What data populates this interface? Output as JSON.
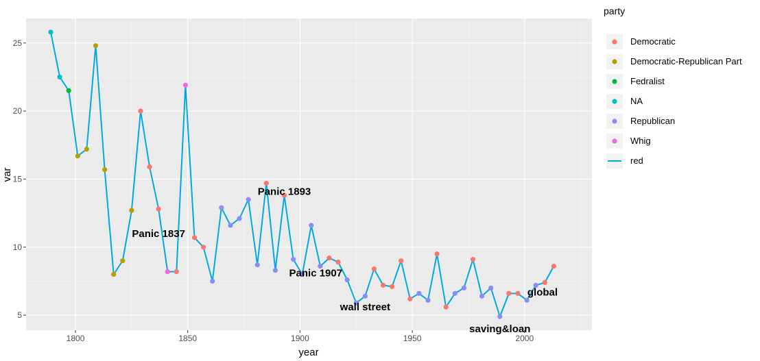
{
  "chart_data": {
    "type": "line",
    "xlabel": "year",
    "ylabel": "var",
    "xlim": [
      1778,
      2030
    ],
    "ylim": [
      3.9,
      26.8
    ],
    "x_ticks": [
      1800,
      1850,
      1900,
      1950,
      2000
    ],
    "y_ticks": [
      5,
      10,
      15,
      20,
      25
    ],
    "grid": true,
    "legend_position": "right",
    "legend_title": "party",
    "line_series": {
      "name": "red",
      "color": "#00A9E0"
    },
    "parties": [
      {
        "name": "Democratic",
        "color": "#F8766D"
      },
      {
        "name": "Democratic-Republican Part",
        "color": "#B79F00"
      },
      {
        "name": "Fedralist",
        "color": "#00BA38"
      },
      {
        "name": "NA",
        "color": "#00BFC4"
      },
      {
        "name": "Republican",
        "color": "#8C8CF5"
      },
      {
        "name": "Whig",
        "color": "#F564E3"
      }
    ],
    "points": [
      {
        "x": 1789,
        "y": 25.8,
        "party": "NA"
      },
      {
        "x": 1793,
        "y": 22.5,
        "party": "NA"
      },
      {
        "x": 1797,
        "y": 21.5,
        "party": "Fedralist"
      },
      {
        "x": 1801,
        "y": 16.7,
        "party": "Democratic-Republican Part"
      },
      {
        "x": 1805,
        "y": 17.2,
        "party": "Democratic-Republican Part"
      },
      {
        "x": 1809,
        "y": 24.8,
        "party": "Democratic-Republican Part"
      },
      {
        "x": 1813,
        "y": 15.7,
        "party": "Democratic-Republican Part"
      },
      {
        "x": 1817,
        "y": 8.0,
        "party": "Democratic-Republican Part"
      },
      {
        "x": 1821,
        "y": 9.0,
        "party": "Democratic-Republican Part"
      },
      {
        "x": 1825,
        "y": 12.7,
        "party": "Democratic-Republican Part"
      },
      {
        "x": 1829,
        "y": 20.0,
        "party": "Democratic"
      },
      {
        "x": 1833,
        "y": 15.9,
        "party": "Democratic"
      },
      {
        "x": 1837,
        "y": 12.8,
        "party": "Democratic"
      },
      {
        "x": 1841,
        "y": 8.2,
        "party": "Whig"
      },
      {
        "x": 1845,
        "y": 8.2,
        "party": "Democratic"
      },
      {
        "x": 1849,
        "y": 21.9,
        "party": "Whig"
      },
      {
        "x": 1853,
        "y": 10.7,
        "party": "Democratic"
      },
      {
        "x": 1857,
        "y": 10.0,
        "party": "Democratic"
      },
      {
        "x": 1861,
        "y": 7.5,
        "party": "Republican"
      },
      {
        "x": 1865,
        "y": 12.9,
        "party": "Republican"
      },
      {
        "x": 1869,
        "y": 11.6,
        "party": "Republican"
      },
      {
        "x": 1873,
        "y": 12.1,
        "party": "Republican"
      },
      {
        "x": 1877,
        "y": 13.5,
        "party": "Republican"
      },
      {
        "x": 1881,
        "y": 8.7,
        "party": "Republican"
      },
      {
        "x": 1885,
        "y": 14.7,
        "party": "Democratic"
      },
      {
        "x": 1889,
        "y": 8.3,
        "party": "Republican"
      },
      {
        "x": 1893,
        "y": 13.8,
        "party": "Democratic"
      },
      {
        "x": 1897,
        "y": 9.1,
        "party": "Republican"
      },
      {
        "x": 1901,
        "y": 8.0,
        "party": "Republican"
      },
      {
        "x": 1905,
        "y": 11.6,
        "party": "Republican"
      },
      {
        "x": 1909,
        "y": 8.6,
        "party": "Republican"
      },
      {
        "x": 1913,
        "y": 9.2,
        "party": "Democratic"
      },
      {
        "x": 1917,
        "y": 8.9,
        "party": "Democratic"
      },
      {
        "x": 1921,
        "y": 7.6,
        "party": "Republican"
      },
      {
        "x": 1925,
        "y": 5.9,
        "party": "Republican"
      },
      {
        "x": 1929,
        "y": 6.4,
        "party": "Republican"
      },
      {
        "x": 1933,
        "y": 8.4,
        "party": "Democratic"
      },
      {
        "x": 1937,
        "y": 7.2,
        "party": "Democratic"
      },
      {
        "x": 1941,
        "y": 7.1,
        "party": "Democratic"
      },
      {
        "x": 1945,
        "y": 9.0,
        "party": "Democratic"
      },
      {
        "x": 1949,
        "y": 6.2,
        "party": "Democratic"
      },
      {
        "x": 1953,
        "y": 6.6,
        "party": "Republican"
      },
      {
        "x": 1957,
        "y": 6.1,
        "party": "Republican"
      },
      {
        "x": 1961,
        "y": 9.5,
        "party": "Democratic"
      },
      {
        "x": 1965,
        "y": 5.6,
        "party": "Democratic"
      },
      {
        "x": 1969,
        "y": 6.6,
        "party": "Republican"
      },
      {
        "x": 1973,
        "y": 7.0,
        "party": "Republican"
      },
      {
        "x": 1977,
        "y": 9.1,
        "party": "Democratic"
      },
      {
        "x": 1981,
        "y": 6.4,
        "party": "Republican"
      },
      {
        "x": 1985,
        "y": 7.0,
        "party": "Republican"
      },
      {
        "x": 1989,
        "y": 4.9,
        "party": "Republican"
      },
      {
        "x": 1993,
        "y": 6.6,
        "party": "Democratic"
      },
      {
        "x": 1997,
        "y": 6.6,
        "party": "Democratic"
      },
      {
        "x": 2001,
        "y": 6.1,
        "party": "Republican"
      },
      {
        "x": 2005,
        "y": 7.2,
        "party": "Republican"
      },
      {
        "x": 2009,
        "y": 7.4,
        "party": "Democratic"
      },
      {
        "x": 2013,
        "y": 8.6,
        "party": "Democratic"
      }
    ],
    "annotations": [
      {
        "text": "Panic 1837",
        "x": 1837,
        "y": 11.0
      },
      {
        "text": "Panic 1893",
        "x": 1893,
        "y": 14.1
      },
      {
        "text": "Panic 1907",
        "x": 1907,
        "y": 8.1
      },
      {
        "text": "wall street",
        "x": 1929,
        "y": 5.6
      },
      {
        "text": "saving&loan",
        "x": 1989,
        "y": 4.0
      },
      {
        "text": "global",
        "x": 2008,
        "y": 6.7
      }
    ]
  }
}
